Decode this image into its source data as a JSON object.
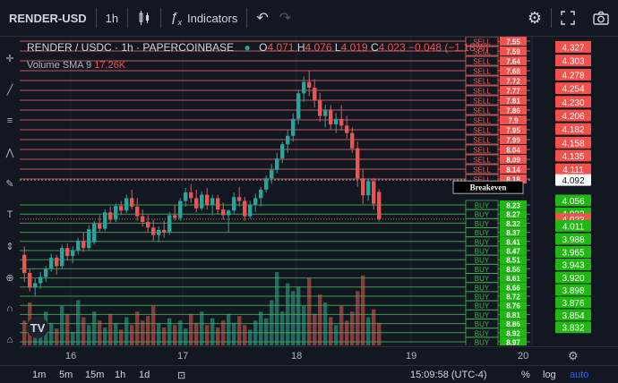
{
  "toolbar": {
    "symbol": "RENDER-USD",
    "interval": "1h",
    "indicators_label": "Indicators"
  },
  "legend": {
    "title": "RENDER / USDC · 1h · PAPERCOINBASE",
    "open_label": "O",
    "open": "4.071",
    "high_label": "H",
    "high": "4.076",
    "low_label": "L",
    "low": "4.019",
    "close_label": "C",
    "close": "4.023",
    "change": "−0.048 (−1.18%)"
  },
  "volume": {
    "label": "Volume SMA 9",
    "value": "17.26K"
  },
  "breakeven_label": "Breakeven",
  "price_axis": {
    "labels": [
      "4.327",
      "4.303",
      "4.278",
      "4.254",
      "4.230",
      "4.206",
      "4.182",
      "4.158",
      "4.135",
      "4.111",
      "4.092",
      "4.056",
      "4.033",
      "4.023",
      "4.011",
      "3.988",
      "3.965",
      "3.943",
      "3.920",
      "3.898",
      "3.876",
      "3.854",
      "3.832"
    ],
    "current_price": "4.023"
  },
  "sell_orders": [
    "7.55",
    "7.59",
    "7.64",
    "7.68",
    "7.72",
    "7.77",
    "7.81",
    "7.86",
    "7.9",
    "7.95",
    "7.99",
    "8.04",
    "8.09",
    "8.14",
    "8.18"
  ],
  "buy_orders": [
    "8.23",
    "8.27",
    "8.32",
    "8.37",
    "8.41",
    "8.47",
    "8.51",
    "8.56",
    "8.61",
    "8.66",
    "8.72",
    "8.76",
    "8.81",
    "8.86",
    "8.92",
    "8.97"
  ],
  "order_labels": {
    "sell": "SELL",
    "buy": "BUY"
  },
  "time_axis": [
    "16",
    "17",
    "18",
    "19",
    "20"
  ],
  "bottom": {
    "ranges": [
      "1m",
      "5m",
      "15m",
      "1h",
      "1d"
    ],
    "clock": "15:09:58 (UTC-4)",
    "percent": "%",
    "log": "log",
    "auto": "auto"
  },
  "colors": {
    "up": "#26a69a",
    "down": "#ef5350",
    "sell_line": "#e0655f",
    "buy_line": "#3cb54a",
    "buy_label_bg": "#22b814",
    "sell_label_bg": "#f4504c"
  },
  "chart_data": {
    "type": "candlestick",
    "candles": [
      [
        3.96,
        3.975,
        3.912,
        3.928
      ],
      [
        3.928,
        3.934,
        3.895,
        3.902
      ],
      [
        3.902,
        3.918,
        3.888,
        3.91
      ],
      [
        3.91,
        3.93,
        3.9,
        3.921
      ],
      [
        3.921,
        3.94,
        3.912,
        3.935
      ],
      [
        3.935,
        3.962,
        3.93,
        3.955
      ],
      [
        3.955,
        3.96,
        3.925,
        3.94
      ],
      [
        3.94,
        3.978,
        3.935,
        3.972
      ],
      [
        3.972,
        3.98,
        3.95,
        3.958
      ],
      [
        3.958,
        3.975,
        3.945,
        3.968
      ],
      [
        3.968,
        3.99,
        3.96,
        3.985
      ],
      [
        3.985,
        4.0,
        3.965,
        3.972
      ],
      [
        3.972,
        4.012,
        3.968,
        4.005
      ],
      [
        3.982,
        4.02,
        3.978,
        4.015
      ],
      [
        4.015,
        4.03,
        4.0,
        4.006
      ],
      [
        4.006,
        4.04,
        4.002,
        4.035
      ],
      [
        4.035,
        4.045,
        4.015,
        4.022
      ],
      [
        4.022,
        4.05,
        4.018,
        4.046
      ],
      [
        4.046,
        4.055,
        4.03,
        4.038
      ],
      [
        4.038,
        4.066,
        4.034,
        4.06
      ],
      [
        4.06,
        4.075,
        4.04,
        4.045
      ],
      [
        4.045,
        4.06,
        4.02,
        4.028
      ],
      [
        4.028,
        4.04,
        4.01,
        4.018
      ],
      [
        4.018,
        4.03,
        4.0,
        4.008
      ],
      [
        4.008,
        4.022,
        3.985,
        3.995
      ],
      [
        3.995,
        4.01,
        3.982,
        4.004
      ],
      [
        4.004,
        4.02,
        3.99,
        4.0
      ],
      [
        4.0,
        4.035,
        3.995,
        4.03
      ],
      [
        4.03,
        4.048,
        4.02,
        4.025
      ],
      [
        4.025,
        4.06,
        4.02,
        4.055
      ],
      [
        4.055,
        4.078,
        4.045,
        4.07
      ],
      [
        4.07,
        4.085,
        4.052,
        4.06
      ],
      [
        4.06,
        4.075,
        4.035,
        4.042
      ],
      [
        4.042,
        4.072,
        4.038,
        4.066
      ],
      [
        4.066,
        4.078,
        4.04,
        4.048
      ],
      [
        4.048,
        4.066,
        4.03,
        4.06
      ],
      [
        4.06,
        4.066,
        4.032,
        4.04
      ],
      [
        4.04,
        4.052,
        4.022,
        4.03
      ],
      [
        4.03,
        4.04,
        4.0,
        4.038
      ],
      [
        4.038,
        4.07,
        4.032,
        4.062
      ],
      [
        4.062,
        4.08,
        4.045,
        4.055
      ],
      [
        4.055,
        4.062,
        4.02,
        4.028
      ],
      [
        4.028,
        4.055,
        4.024,
        4.048
      ],
      [
        4.048,
        4.068,
        4.036,
        4.06
      ],
      [
        4.06,
        4.08,
        4.045,
        4.075
      ],
      [
        4.075,
        4.1,
        4.07,
        4.095
      ],
      [
        4.095,
        4.12,
        4.085,
        4.11
      ],
      [
        4.11,
        4.14,
        4.104,
        4.13
      ],
      [
        4.13,
        4.16,
        4.122,
        4.155
      ],
      [
        4.155,
        4.18,
        4.14,
        4.17
      ],
      [
        4.17,
        4.21,
        4.16,
        4.2
      ],
      [
        4.2,
        4.25,
        4.19,
        4.245
      ],
      [
        4.245,
        4.275,
        4.23,
        4.265
      ],
      [
        4.265,
        4.285,
        4.24,
        4.255
      ],
      [
        4.255,
        4.27,
        4.22,
        4.232
      ],
      [
        4.232,
        4.246,
        4.195,
        4.205
      ],
      [
        4.205,
        4.225,
        4.185,
        4.216
      ],
      [
        4.216,
        4.224,
        4.18,
        4.19
      ],
      [
        4.19,
        4.21,
        4.175,
        4.2
      ],
      [
        4.2,
        4.224,
        4.18,
        4.188
      ],
      [
        4.188,
        4.205,
        4.165,
        4.175
      ],
      [
        4.175,
        4.185,
        4.14,
        4.148
      ],
      [
        4.148,
        4.16,
        4.08,
        4.095
      ],
      [
        4.095,
        4.11,
        4.05,
        4.065
      ],
      [
        4.065,
        4.095,
        4.055,
        4.09
      ],
      [
        4.09,
        4.096,
        4.04,
        4.05
      ],
      [
        4.071,
        4.076,
        4.019,
        4.023
      ]
    ],
    "volume": [
      22,
      38,
      18,
      25,
      30,
      20,
      15,
      35,
      28,
      12,
      40,
      25,
      18,
      30,
      22,
      16,
      28,
      20,
      14,
      25,
      18,
      30,
      22,
      26,
      35,
      20,
      16,
      24,
      18,
      22,
      15,
      28,
      20,
      30,
      18,
      24,
      16,
      22,
      28,
      20,
      26,
      18,
      14,
      22,
      30,
      24,
      40,
      65,
      30,
      55,
      48,
      52,
      35,
      60,
      28,
      45,
      38,
      25,
      18,
      35,
      22,
      30,
      48,
      62,
      25,
      32,
      20
    ],
    "price_range": [
      3.8,
      4.345
    ],
    "x_ticks": [
      "16",
      "17",
      "18",
      "19",
      "20"
    ]
  }
}
